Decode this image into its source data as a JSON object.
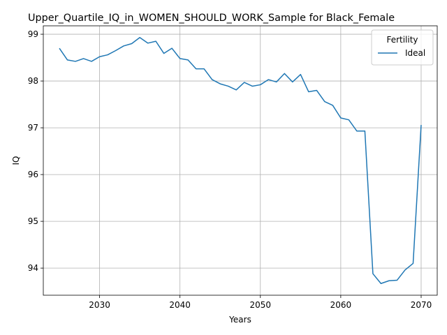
{
  "chart_data": {
    "type": "line",
    "title": "Upper_Quartile_IQ_in_WOMEN_SHOULD_WORK_Sample for Black_Female",
    "xlabel": "Years",
    "ylabel": "IQ",
    "xlim": [
      2023,
      2072
    ],
    "ylim": [
      93.42,
      99.18
    ],
    "xticks": [
      2030,
      2040,
      2050,
      2060,
      2070
    ],
    "yticks": [
      94,
      95,
      96,
      97,
      98,
      99
    ],
    "grid": true,
    "legend": {
      "title": "Fertility",
      "placement": "top-right"
    },
    "colors": {
      "series": "#1f77b4",
      "grid": "#b0b0b0",
      "legend_border": "#cccccc"
    },
    "series": [
      {
        "name": "Ideal",
        "x": [
          2025,
          2026,
          2027,
          2028,
          2029,
          2030,
          2031,
          2032,
          2033,
          2034,
          2035,
          2036,
          2037,
          2038,
          2039,
          2040,
          2041,
          2042,
          2043,
          2044,
          2045,
          2046,
          2047,
          2048,
          2049,
          2050,
          2051,
          2052,
          2053,
          2054,
          2055,
          2056,
          2057,
          2058,
          2059,
          2060,
          2061,
          2062,
          2063,
          2064,
          2065,
          2066,
          2067,
          2068,
          2069,
          2070
        ],
        "values": [
          98.7,
          98.45,
          98.42,
          98.48,
          98.42,
          98.52,
          98.56,
          98.65,
          98.75,
          98.8,
          98.93,
          98.81,
          98.85,
          98.59,
          98.7,
          98.48,
          98.45,
          98.26,
          98.26,
          98.03,
          97.94,
          97.89,
          97.81,
          97.97,
          97.89,
          97.92,
          98.03,
          97.98,
          98.16,
          97.98,
          98.14,
          97.77,
          97.8,
          97.56,
          97.48,
          97.21,
          97.17,
          96.93,
          96.93,
          93.88,
          93.67,
          93.73,
          93.74,
          93.96,
          94.1,
          97.06
        ]
      }
    ]
  }
}
